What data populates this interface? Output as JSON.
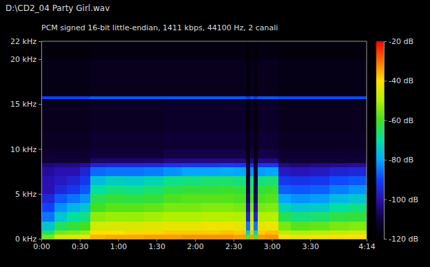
{
  "chart_data": {
    "type": "heatmap",
    "title": "D:\\CD2_04 Party Girl.wav",
    "subtitle": "PCM signed 16-bit little-endian, 1411 kbps, 44100 Hz, 2 canali",
    "xlim": [
      0,
      254
    ],
    "ylim": [
      0,
      22
    ],
    "xticks": [
      {
        "value": 0,
        "label": "0:00"
      },
      {
        "value": 30,
        "label": "0:30"
      },
      {
        "value": 60,
        "label": "1:00"
      },
      {
        "value": 90,
        "label": "1:30"
      },
      {
        "value": 120,
        "label": "2:00"
      },
      {
        "value": 150,
        "label": "2:30"
      },
      {
        "value": 180,
        "label": "3:00"
      },
      {
        "value": 210,
        "label": "3:30"
      },
      {
        "value": 254,
        "label": "4:14"
      }
    ],
    "yticks": [
      {
        "value": 0,
        "label": "0 kHz"
      },
      {
        "value": 5,
        "label": "5 kHz"
      },
      {
        "value": 10,
        "label": "10 kHz"
      },
      {
        "value": 15,
        "label": "15 kHz"
      },
      {
        "value": 20,
        "label": "20 kHz"
      },
      {
        "value": 22,
        "label": "22 kHz"
      }
    ],
    "x_edges": [
      0,
      10,
      20,
      30,
      38,
      50,
      65,
      80,
      95,
      110,
      125,
      140,
      150,
      160,
      163,
      166,
      169,
      175,
      185,
      195,
      210,
      225,
      240,
      254
    ],
    "y_edges": [
      0,
      0.5,
      1,
      2,
      3,
      4,
      5,
      6,
      7,
      8,
      8.5,
      9,
      10,
      12,
      15.6,
      15.9,
      20,
      22
    ],
    "z": [
      [
        -55,
        -65,
        -75,
        -85,
        -90,
        -95,
        -100,
        -100,
        -102,
        -105,
        -110,
        -112,
        -114,
        -115,
        -90,
        -116,
        -118
      ],
      [
        -45,
        -55,
        -65,
        -75,
        -82,
        -88,
        -95,
        -98,
        -100,
        -104,
        -110,
        -112,
        -114,
        -115,
        -90,
        -116,
        -118
      ],
      [
        -44,
        -54,
        -62,
        -70,
        -78,
        -85,
        -92,
        -96,
        -100,
        -104,
        -110,
        -112,
        -114,
        -115,
        -90,
        -116,
        -118
      ],
      [
        -42,
        -52,
        -60,
        -68,
        -75,
        -82,
        -88,
        -92,
        -96,
        -102,
        -110,
        -112,
        -114,
        -115,
        -90,
        -116,
        -118
      ],
      [
        -36,
        -40,
        -46,
        -53,
        -60,
        -64,
        -70,
        -76,
        -86,
        -96,
        -106,
        -110,
        -112,
        -114,
        -88,
        -115,
        -117
      ],
      [
        -35,
        -40,
        -45,
        -52,
        -58,
        -62,
        -67,
        -73,
        -85,
        -95,
        -106,
        -110,
        -112,
        -114,
        -88,
        -115,
        -117
      ],
      [
        -35,
        -39,
        -45,
        -52,
        -58,
        -63,
        -68,
        -74,
        -85,
        -95,
        -106,
        -110,
        -112,
        -114,
        -88,
        -115,
        -117
      ],
      [
        -34,
        -39,
        -44,
        -51,
        -57,
        -62,
        -66,
        -72,
        -84,
        -95,
        -106,
        -110,
        -112,
        -114,
        -88,
        -115,
        -117
      ],
      [
        -34,
        -38,
        -43,
        -50,
        -55,
        -59,
        -63,
        -68,
        -82,
        -93,
        -104,
        -109,
        -111,
        -113,
        -88,
        -115,
        -117
      ],
      [
        -33,
        -38,
        -43,
        -50,
        -55,
        -58,
        -62,
        -67,
        -80,
        -92,
        -104,
        -109,
        -111,
        -113,
        -88,
        -115,
        -117
      ],
      [
        -33,
        -38,
        -42,
        -49,
        -54,
        -58,
        -62,
        -66,
        -80,
        -92,
        -104,
        -109,
        -111,
        -113,
        -88,
        -115,
        -117
      ],
      [
        -33,
        -37,
        -42,
        -49,
        -54,
        -58,
        -61,
        -66,
        -79,
        -91,
        -104,
        -109,
        -111,
        -113,
        -88,
        -115,
        -117
      ],
      [
        -34,
        -38,
        -43,
        -50,
        -55,
        -59,
        -62,
        -67,
        -80,
        -92,
        -104,
        -109,
        -111,
        -113,
        -88,
        -115,
        -117
      ],
      [
        -58,
        -72,
        -85,
        -96,
        -102,
        -106,
        -108,
        -110,
        -112,
        -113,
        -115,
        -116,
        -117,
        -118,
        -92,
        -118,
        -119
      ],
      [
        -34,
        -38,
        -43,
        -50,
        -55,
        -59,
        -63,
        -68,
        -82,
        -93,
        -104,
        -109,
        -111,
        -113,
        -88,
        -115,
        -117
      ],
      [
        -58,
        -72,
        -85,
        -96,
        -102,
        -106,
        -108,
        -110,
        -112,
        -113,
        -115,
        -116,
        -117,
        -118,
        -92,
        -118,
        -119
      ],
      [
        -34,
        -38,
        -43,
        -50,
        -55,
        -59,
        -62,
        -67,
        -81,
        -92,
        -104,
        -109,
        -111,
        -113,
        -88,
        -115,
        -117
      ],
      [
        -33,
        -37,
        -42,
        -49,
        -54,
        -58,
        -61,
        -66,
        -80,
        -92,
        -104,
        -109,
        -111,
        -113,
        -88,
        -115,
        -117
      ],
      [
        -40,
        -48,
        -55,
        -64,
        -72,
        -80,
        -87,
        -92,
        -98,
        -104,
        -110,
        -112,
        -114,
        -115,
        -89,
        -116,
        -118
      ],
      [
        -42,
        -50,
        -58,
        -67,
        -75,
        -82,
        -88,
        -93,
        -99,
        -105,
        -110,
        -112,
        -114,
        -115,
        -89,
        -116,
        -118
      ],
      [
        -41,
        -49,
        -57,
        -66,
        -74,
        -81,
        -87,
        -92,
        -98,
        -104,
        -110,
        -112,
        -114,
        -115,
        -89,
        -116,
        -118
      ],
      [
        -40,
        -47,
        -55,
        -63,
        -70,
        -77,
        -84,
        -89,
        -96,
        -103,
        -110,
        -112,
        -114,
        -115,
        -89,
        -116,
        -118
      ],
      [
        -40,
        -46,
        -54,
        -62,
        -68,
        -75,
        -82,
        -88,
        -95,
        -102,
        -110,
        -112,
        -114,
        -115,
        -89,
        -116,
        -118
      ]
    ],
    "colorbar_range": [
      -120,
      -20
    ],
    "colorbar_ticks": [
      {
        "value": -20,
        "label": "-20 dB"
      },
      {
        "value": -40,
        "label": "-40 dB"
      },
      {
        "value": -60,
        "label": "-60 dB"
      },
      {
        "value": -80,
        "label": "-80 dB"
      },
      {
        "value": -100,
        "label": "-100 dB"
      },
      {
        "value": -120,
        "label": "-120 dB"
      }
    ]
  }
}
